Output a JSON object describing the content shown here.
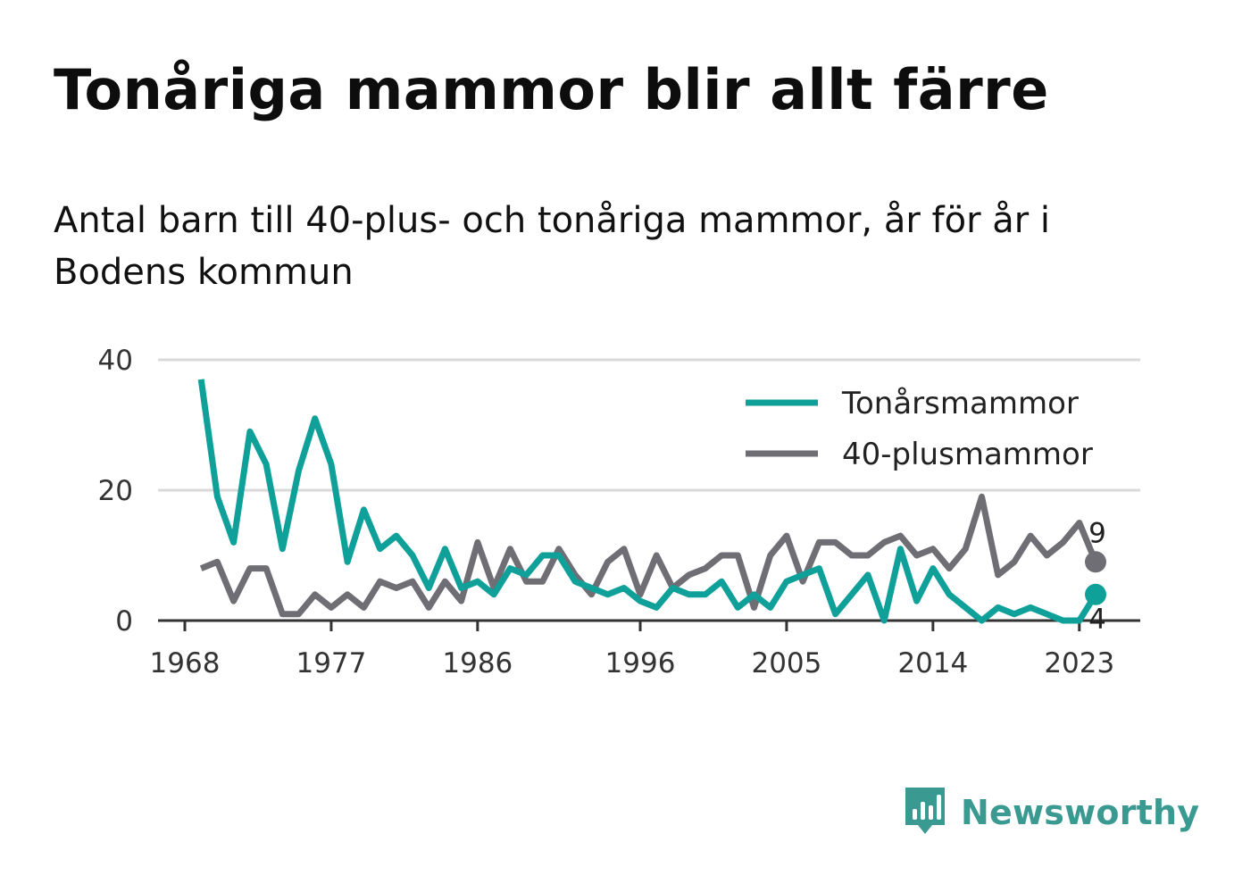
{
  "title": "Tonåriga mammor blir allt färre",
  "subtitle": "Antal barn till 40-plus- och tonåriga mammor, år för år i Bodens kommun",
  "brand": {
    "name": "Newsworthy",
    "icon": "newsworthy-logo-icon"
  },
  "colors": {
    "teen": "#0fa199",
    "forty": "#6f6e74",
    "grid": "#d9d9d9",
    "axis": "#333333"
  },
  "chart_data": {
    "type": "line",
    "title": "Tonåriga mammor blir allt färre",
    "xlabel": "",
    "ylabel": "",
    "xlim": [
      1968,
      2025
    ],
    "ylim": [
      0,
      40
    ],
    "x_ticks": [
      1968,
      1977,
      1986,
      1996,
      2005,
      2014,
      2023
    ],
    "y_ticks": [
      0,
      20,
      40
    ],
    "grid": "horizontal",
    "legend_position": "top-right",
    "x": [
      1969,
      1970,
      1971,
      1972,
      1973,
      1974,
      1975,
      1976,
      1977,
      1978,
      1979,
      1980,
      1981,
      1982,
      1983,
      1984,
      1985,
      1986,
      1987,
      1988,
      1989,
      1990,
      1991,
      1992,
      1993,
      1994,
      1995,
      1996,
      1997,
      1998,
      1999,
      2000,
      2001,
      2002,
      2003,
      2004,
      2005,
      2006,
      2007,
      2008,
      2009,
      2010,
      2011,
      2012,
      2013,
      2014,
      2015,
      2016,
      2017,
      2018,
      2019,
      2020,
      2021,
      2022,
      2023,
      2024
    ],
    "series": [
      {
        "name": "Tonårsmammor",
        "color": "#0fa199",
        "values": [
          37,
          19,
          12,
          29,
          24,
          11,
          23,
          31,
          24,
          9,
          17,
          11,
          13,
          10,
          5,
          11,
          5,
          6,
          4,
          8,
          7,
          10,
          10,
          6,
          5,
          4,
          5,
          3,
          2,
          5,
          4,
          4,
          6,
          2,
          4,
          2,
          6,
          7,
          8,
          1,
          4,
          7,
          0,
          11,
          3,
          8,
          4,
          2,
          0,
          2,
          1,
          2,
          1,
          0,
          0,
          4
        ],
        "end_label": "4"
      },
      {
        "name": "40-plusmammor",
        "color": "#6f6e74",
        "values": [
          8,
          9,
          3,
          8,
          8,
          1,
          1,
          4,
          2,
          4,
          2,
          6,
          5,
          6,
          2,
          6,
          3,
          12,
          5,
          11,
          6,
          6,
          11,
          7,
          4,
          9,
          11,
          4,
          10,
          5,
          7,
          8,
          10,
          10,
          2,
          10,
          13,
          6,
          12,
          12,
          10,
          10,
          12,
          13,
          10,
          11,
          8,
          11,
          19,
          7,
          9,
          13,
          10,
          12,
          15,
          9
        ],
        "end_label": "9"
      }
    ]
  }
}
